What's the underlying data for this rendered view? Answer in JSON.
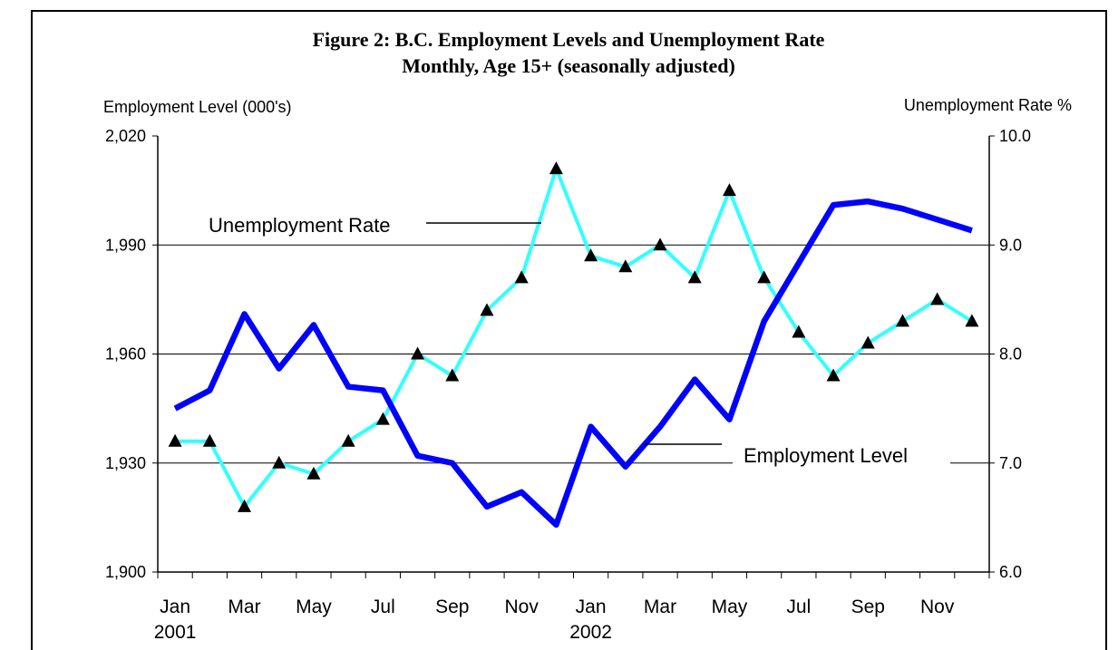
{
  "chart_data": {
    "type": "line",
    "title": "Figure 2:  B.C. Employment Levels and Unemployment Rate",
    "subtitle": "Monthly, Age 15+ (seasonally adjusted)",
    "ylabel_left": "Employment Level (000's)",
    "ylabel_right": "Unemployment Rate %",
    "ylim_left": [
      1900,
      2020
    ],
    "ylim_right": [
      6.0,
      10.0
    ],
    "yticks_left": [
      "1,900",
      "1,930",
      "1,960",
      "1,990",
      "2,020"
    ],
    "yticks_right": [
      "6.0",
      "7.0",
      "8.0",
      "9.0",
      "10.0"
    ],
    "x_tick_labels": [
      "Jan",
      "Mar",
      "May",
      "Jul",
      "Sep",
      "Nov",
      "Jan",
      "Mar",
      "May",
      "Jul",
      "Sep",
      "Nov"
    ],
    "x_year_labels": [
      "2001",
      "2002"
    ],
    "grid": "horizontal",
    "series": [
      {
        "name": "Employment Level",
        "axis": "left",
        "color": "#0000ff",
        "marker": "none",
        "values": [
          1945,
          1950,
          1971,
          1956,
          1968,
          1951,
          1950,
          1932,
          1930,
          1918,
          1922,
          1913,
          1940,
          1929,
          1940,
          1953,
          1942,
          1969,
          1985,
          2001,
          2002,
          2000,
          1997,
          1994
        ]
      },
      {
        "name": "Unemployment Rate",
        "axis": "right",
        "color": "#33ffff",
        "marker": "triangle",
        "values": [
          7.2,
          7.2,
          6.6,
          7.0,
          6.9,
          7.2,
          7.4,
          8.0,
          7.8,
          8.4,
          8.7,
          9.7,
          8.9,
          8.8,
          9.0,
          8.7,
          9.5,
          8.7,
          8.2,
          7.8,
          8.1,
          8.3,
          8.5,
          8.3
        ]
      }
    ]
  }
}
